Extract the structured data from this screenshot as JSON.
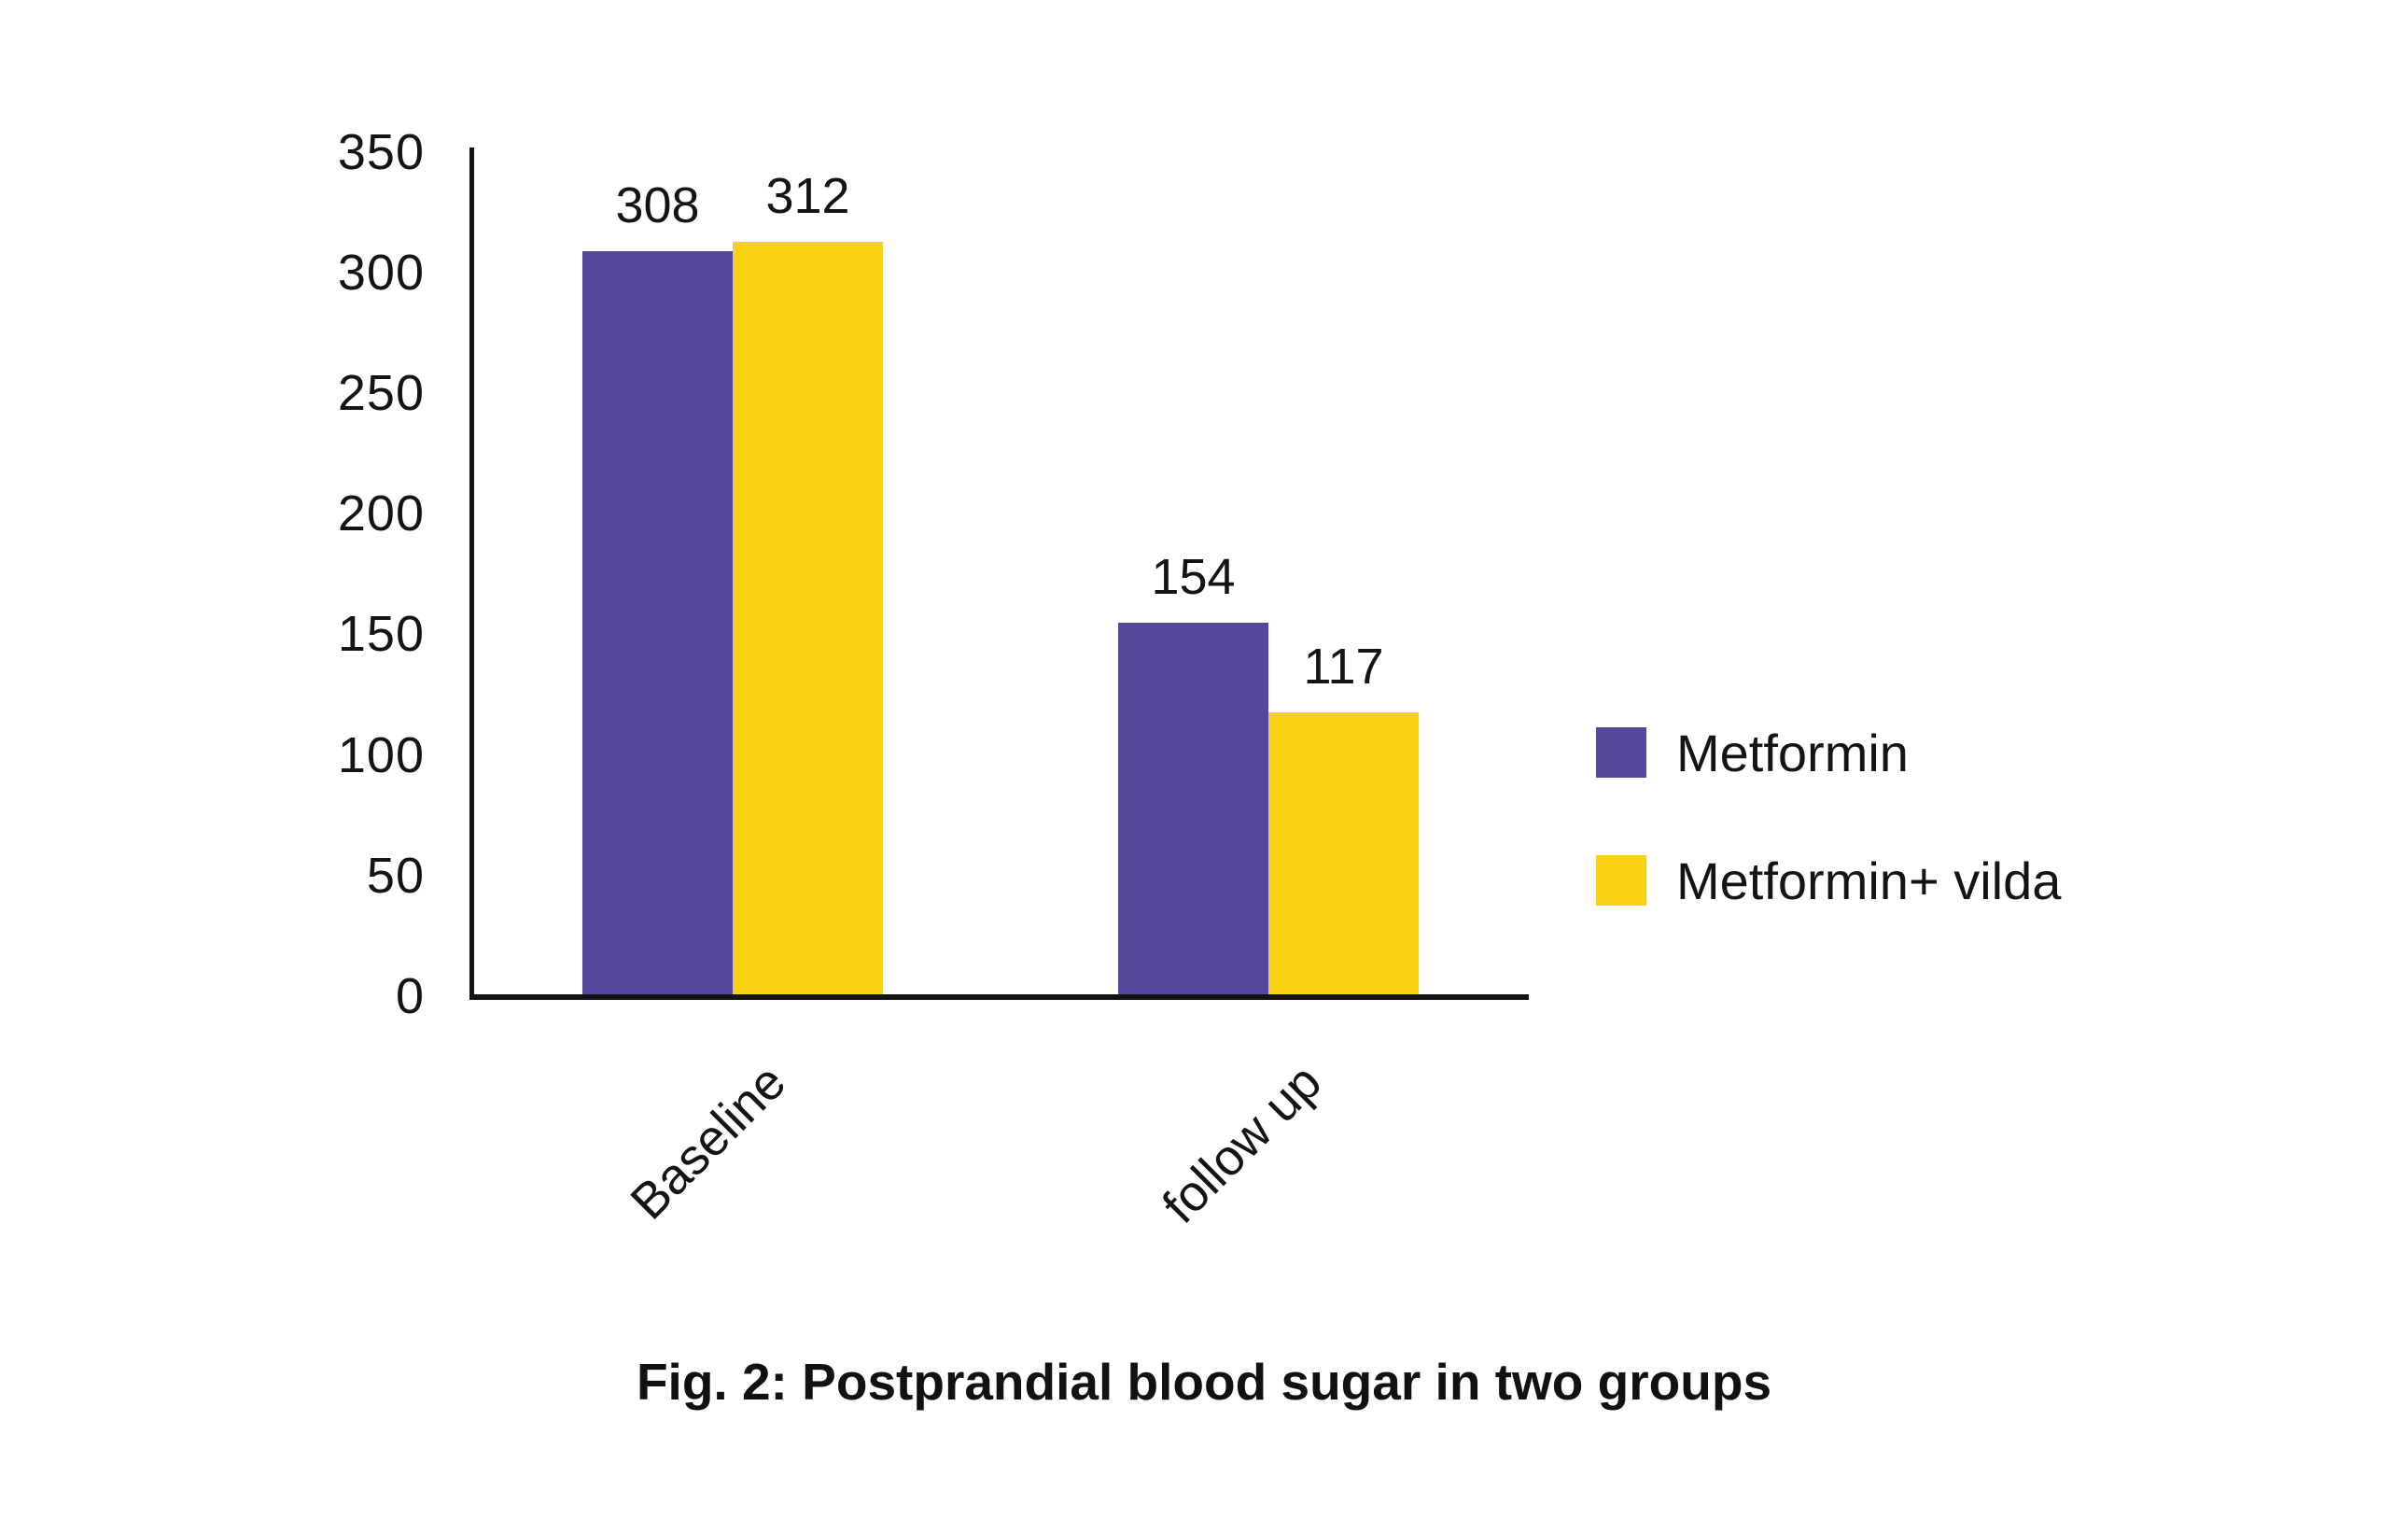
{
  "figure": {
    "caption": "Fig. 2: Postprandial blood sugar in two groups"
  },
  "chart_data": {
    "type": "bar",
    "categories": [
      "Baseline",
      "follow up"
    ],
    "series": [
      {
        "name": "Metformin",
        "color": "#55489C",
        "values": [
          308,
          154
        ]
      },
      {
        "name": "Metformin+ vilda",
        "color": "#F8D313",
        "values": [
          312,
          117
        ]
      }
    ],
    "title": "",
    "xlabel": "",
    "ylabel": "",
    "ylim": [
      0,
      350
    ],
    "yticks": [
      350,
      300,
      250,
      200,
      150,
      100,
      50,
      0
    ],
    "grid": false,
    "legend_position": "right",
    "value_labels": true,
    "x_tick_rotation_deg": 45
  }
}
